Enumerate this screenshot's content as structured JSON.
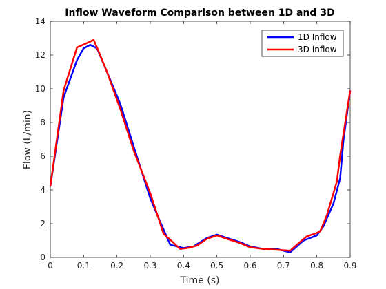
{
  "chart_data": {
    "type": "line",
    "title": "Inflow Waveform Comparison between 1D and 3D",
    "xlabel": "Time (s)",
    "ylabel": "Flow (L/min)",
    "xlim": [
      0,
      0.9
    ],
    "ylim": [
      0,
      14
    ],
    "xticks": [
      0,
      0.1,
      0.2,
      0.3,
      0.4,
      0.5,
      0.6,
      0.7,
      0.8,
      0.9
    ],
    "xtick_labels": [
      "0",
      "0.1",
      "0.2",
      "0.3",
      "0.4",
      "0.5",
      "0.6",
      "0.7",
      "0.8",
      "0.9"
    ],
    "yticks": [
      0,
      2,
      4,
      6,
      8,
      10,
      12,
      14
    ],
    "ytick_labels": [
      "0",
      "2",
      "4",
      "6",
      "8",
      "10",
      "12",
      "14"
    ],
    "grid": false,
    "legend_position": "top-right",
    "series": [
      {
        "name": "1D Inflow",
        "color": "#0000ff",
        "x": [
          0,
          0.04,
          0.08,
          0.1,
          0.12,
          0.14,
          0.17,
          0.21,
          0.25,
          0.3,
          0.33,
          0.36,
          0.4,
          0.43,
          0.47,
          0.5,
          0.53,
          0.57,
          0.6,
          0.64,
          0.68,
          0.72,
          0.74,
          0.76,
          0.8,
          0.82,
          0.85,
          0.87,
          0.88,
          0.9
        ],
        "y": [
          4.2,
          9.5,
          11.7,
          12.4,
          12.6,
          12.4,
          11.0,
          9.1,
          6.6,
          3.5,
          2.1,
          0.75,
          0.55,
          0.65,
          1.15,
          1.35,
          1.15,
          0.9,
          0.65,
          0.5,
          0.5,
          0.3,
          0.65,
          1.0,
          1.3,
          1.85,
          3.2,
          4.7,
          6.95,
          9.9
        ]
      },
      {
        "name": "3D Inflow",
        "color": "#ff0000",
        "x": [
          0,
          0.04,
          0.08,
          0.12,
          0.13,
          0.14,
          0.17,
          0.21,
          0.25,
          0.3,
          0.34,
          0.39,
          0.41,
          0.44,
          0.47,
          0.5,
          0.53,
          0.57,
          0.6,
          0.64,
          0.68,
          0.72,
          0.74,
          0.77,
          0.8,
          0.81,
          0.83,
          0.86,
          0.87,
          0.9
        ],
        "y": [
          4.2,
          9.9,
          12.45,
          12.8,
          12.9,
          12.45,
          11.0,
          8.8,
          6.35,
          3.8,
          1.4,
          0.5,
          0.55,
          0.7,
          1.1,
          1.3,
          1.1,
          0.85,
          0.6,
          0.5,
          0.45,
          0.4,
          0.75,
          1.25,
          1.45,
          1.55,
          2.5,
          4.5,
          6.05,
          9.9
        ]
      }
    ]
  }
}
